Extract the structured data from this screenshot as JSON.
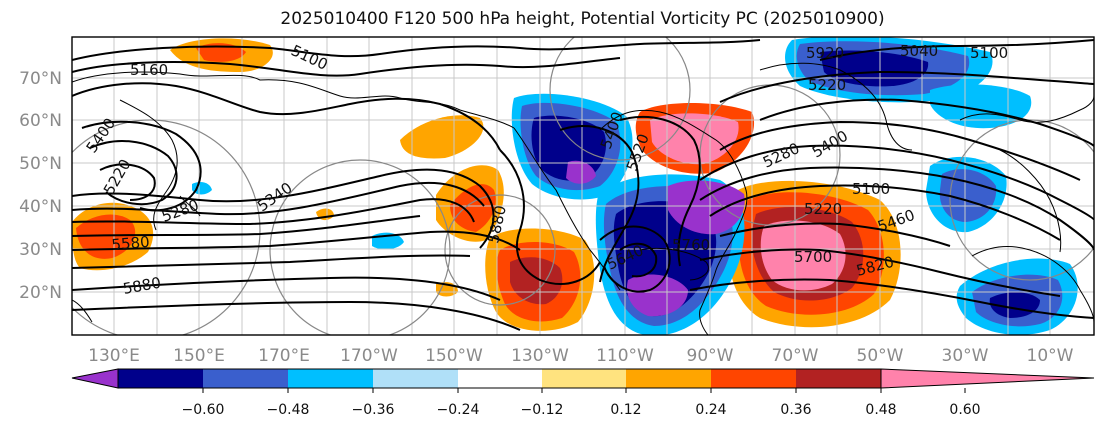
{
  "title": "2025010400 F120 500 hPa height, Potential Vorticity PC (2025010900)",
  "map": {
    "lat_labels": [
      "70°N",
      "60°N",
      "50°N",
      "40°N",
      "30°N",
      "20°N"
    ],
    "lon_labels": [
      "130°E",
      "150°E",
      "170°E",
      "170°W",
      "150°W",
      "130°W",
      "110°W",
      "90°W",
      "70°W",
      "50°W",
      "30°W",
      "10°W"
    ],
    "contour_labels": [
      "5160",
      "5100",
      "5400",
      "5220",
      "5280",
      "5340",
      "5580",
      "5880",
      "5880",
      "5640",
      "5520",
      "5760",
      "5400",
      "5920",
      "5040",
      "5100",
      "5220",
      "5280",
      "5400",
      "5100",
      "5220",
      "5460",
      "5700",
      "5820"
    ]
  },
  "colorbar": {
    "ticks": [
      "−0.60",
      "−0.48",
      "−0.36",
      "−0.24",
      "−0.12",
      "0.12",
      "0.24",
      "0.36",
      "0.48",
      "0.60"
    ],
    "colors": [
      "#9932cc",
      "#00008b",
      "#3a5fcd",
      "#00bfff",
      "#b0e0f8",
      "#ffffff",
      "#ffe37f",
      "#ffa500",
      "#ff4500",
      "#b22222",
      "#ff82ab"
    ]
  }
}
